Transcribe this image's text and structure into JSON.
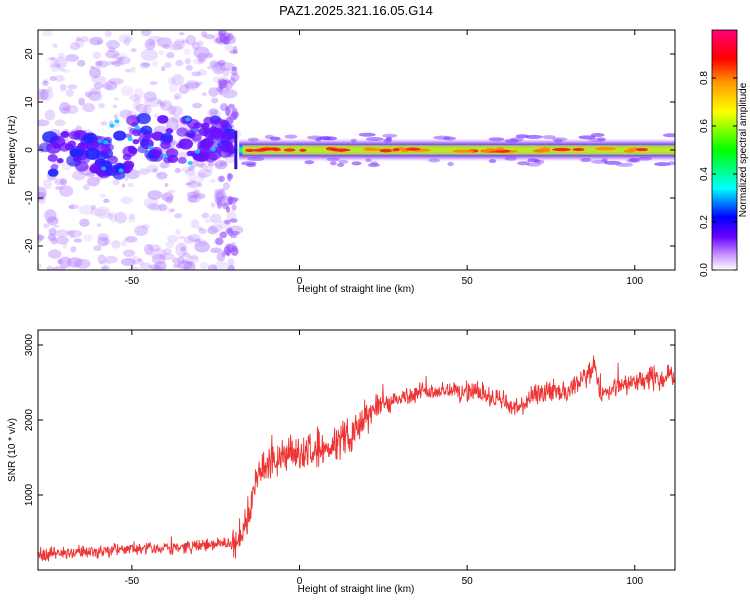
{
  "figure_title": "PAZ1.2025.321.16.05.G14",
  "chart_data": [
    {
      "type": "heatmap",
      "title": "PAZ1.2025.321.16.05.G14",
      "xlabel": "Height of straight line (km)",
      "ylabel": "Frequency (Hz)",
      "xlim": [
        -78,
        112
      ],
      "ylim": [
        -25,
        25
      ],
      "x_ticks": [
        -50,
        0,
        50,
        100
      ],
      "y_ticks": [
        -20,
        -10,
        0,
        10,
        20
      ],
      "colorbar": {
        "label": "Normalized spectral amplitude",
        "range": [
          0.0,
          1.0
        ],
        "ticks": [
          0.0,
          0.2,
          0.4,
          0.6,
          0.8
        ],
        "tick_labels": [
          "0.0",
          "0.2",
          "0.4",
          "0.6",
          "0.8"
        ],
        "colors": [
          "#ffffff",
          "#cc99ff",
          "#6600ff",
          "#0000ff",
          "#00ffff",
          "#00ff00",
          "#ffff00",
          "#ff9900",
          "#ff0000",
          "#ff0077"
        ]
      },
      "description_regions": {
        "noise_region_x": [
          -78,
          -19
        ],
        "signal_line_x": [
          -19,
          112
        ],
        "signal_frequency_hz": 0
      }
    },
    {
      "type": "line",
      "xlabel": "Height of straight line (km)",
      "ylabel": "SNR (10 * v/v)",
      "xlim": [
        -78,
        112
      ],
      "ylim": [
        0,
        3200
      ],
      "x_ticks": [
        -50,
        0,
        50,
        100
      ],
      "y_ticks": [
        1000,
        2000,
        3000
      ],
      "color": "#ee3333",
      "series": [
        {
          "name": "SNR",
          "x": [
            -78,
            -70,
            -60,
            -50,
            -40,
            -30,
            -25,
            -20,
            -18,
            -16,
            -14,
            -12,
            -10,
            -5,
            0,
            5,
            10,
            15,
            20,
            25,
            30,
            35,
            40,
            45,
            50,
            55,
            60,
            65,
            70,
            75,
            80,
            85,
            88,
            90,
            95,
            100,
            105,
            112
          ],
          "y": [
            200,
            230,
            250,
            280,
            300,
            320,
            340,
            350,
            380,
            650,
            1000,
            1300,
            1400,
            1500,
            1550,
            1650,
            1650,
            1800,
            2050,
            2200,
            2300,
            2350,
            2380,
            2400,
            2380,
            2350,
            2250,
            2150,
            2300,
            2400,
            2350,
            2550,
            2750,
            2300,
            2450,
            2500,
            2550,
            2600
          ]
        }
      ]
    }
  ]
}
